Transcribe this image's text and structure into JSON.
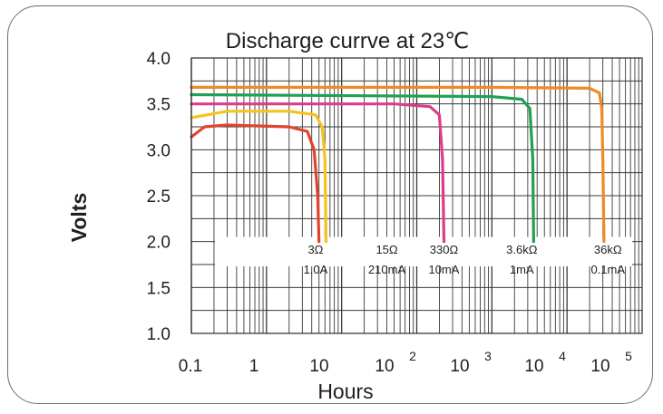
{
  "chart_data": {
    "type": "line",
    "title": "Discharge currve  at 23℃",
    "xlabel": "Hours",
    "ylabel": "Volts",
    "x_scale": "log",
    "xlim": [
      0.1,
      100000
    ],
    "ylim": [
      1.0,
      4.0
    ],
    "grid": true,
    "x_ticks": [
      {
        "base": "0.1",
        "exp": ""
      },
      {
        "base": "1",
        "exp": ""
      },
      {
        "base": "10",
        "exp": ""
      },
      {
        "base": "10",
        "exp": "2"
      },
      {
        "base": "10",
        "exp": "3"
      },
      {
        "base": "10",
        "exp": "4"
      },
      {
        "base": "10",
        "exp": "5"
      }
    ],
    "y_ticks": [
      "4.0",
      "3.5",
      "3.0",
      "2.5",
      "2.0",
      "1.5",
      "1.0"
    ],
    "series": [
      {
        "name": "36kΩ 0.1mA",
        "load": "36kΩ",
        "current": "0.1mA",
        "color": "#f08a24",
        "points": [
          [
            0.1,
            3.68
          ],
          [
            1000,
            3.68
          ],
          [
            20000,
            3.67
          ],
          [
            27000,
            3.62
          ],
          [
            29000,
            3.45
          ],
          [
            30000,
            2.9
          ],
          [
            31000,
            2.0
          ]
        ]
      },
      {
        "name": "3.6kΩ 1mA",
        "load": "3.6kΩ",
        "current": "1mA",
        "color": "#21a055",
        "points": [
          [
            0.1,
            3.6
          ],
          [
            1000,
            3.58
          ],
          [
            2500,
            3.55
          ],
          [
            3200,
            3.45
          ],
          [
            3500,
            2.9
          ],
          [
            3600,
            2.0
          ]
        ]
      },
      {
        "name": "330Ω 10mA",
        "load": "330Ω",
        "current": "10mA",
        "color": "#dd3c8c",
        "points": [
          [
            0.1,
            3.5
          ],
          [
            50,
            3.5
          ],
          [
            150,
            3.47
          ],
          [
            200,
            3.38
          ],
          [
            220,
            2.9
          ],
          [
            230,
            2.0
          ]
        ]
      },
      {
        "name": "15Ω 210mA",
        "load": "15Ω",
        "current": "210mA",
        "color": "#f5c31c",
        "points": [
          [
            0.1,
            3.35
          ],
          [
            0.3,
            3.42
          ],
          [
            2,
            3.42
          ],
          [
            4.5,
            3.38
          ],
          [
            5.5,
            3.25
          ],
          [
            6,
            2.9
          ],
          [
            6.2,
            2.0
          ]
        ]
      },
      {
        "name": "3Ω 1.0A",
        "load": "3Ω",
        "current": "1.0A",
        "color": "#e0442c",
        "points": [
          [
            0.1,
            3.14
          ],
          [
            0.15,
            3.25
          ],
          [
            0.3,
            3.27
          ],
          [
            2,
            3.25
          ],
          [
            3.5,
            3.2
          ],
          [
            4.3,
            3.0
          ],
          [
            4.8,
            2.5
          ],
          [
            5,
            2.0
          ]
        ]
      }
    ],
    "annotations": [
      {
        "text_top": "3Ω",
        "text_bottom": "1.0A",
        "x": 4.5
      },
      {
        "text_top": "15Ω",
        "text_bottom": "210mA",
        "x": 40
      },
      {
        "text_top": "330Ω",
        "text_bottom": "10mA",
        "x": 230
      },
      {
        "text_top": "3.6kΩ",
        "text_bottom": "1mA",
        "x": 2500
      },
      {
        "text_top": "36kΩ",
        "text_bottom": "0.1mA",
        "x": 35000
      }
    ]
  }
}
